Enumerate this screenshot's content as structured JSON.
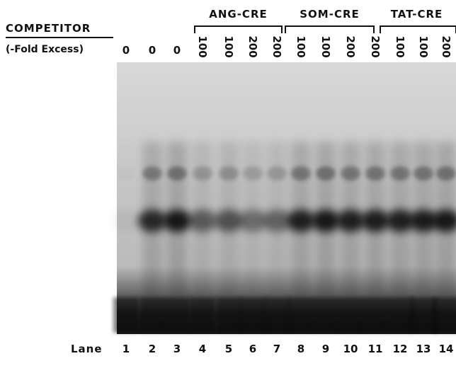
{
  "header": {
    "title": "COMPETITOR",
    "subtitle": "(-Fold Excess)"
  },
  "groups": [
    {
      "label": "ANG-CRE"
    },
    {
      "label": "SOM-CRE"
    },
    {
      "label": "TAT-CRE"
    }
  ],
  "excess": [
    "0",
    "0",
    "0",
    "100",
    "100",
    "200",
    "200",
    "100",
    "100",
    "200",
    "200",
    "100",
    "100",
    "200"
  ],
  "lane_label": "Lane",
  "lanes": [
    "1",
    "2",
    "3",
    "4",
    "5",
    "6",
    "7",
    "8",
    "9",
    "10",
    "11",
    "12",
    "13",
    "14"
  ]
}
